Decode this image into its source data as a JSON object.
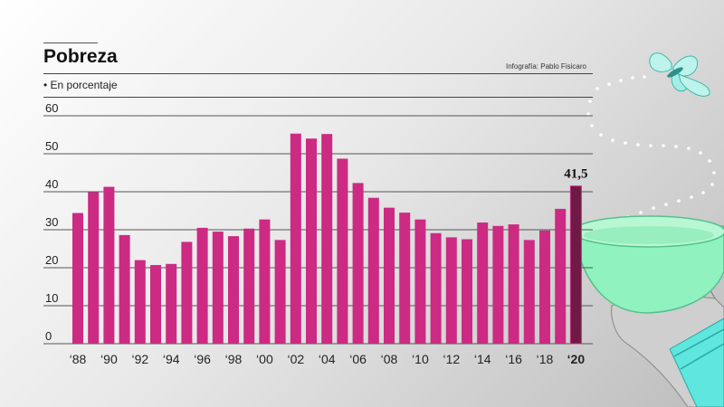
{
  "header": {
    "title": "Pobreza",
    "subtitle": "• En porcentaje",
    "credit": "Infografía: Pablo Fisicaro"
  },
  "colors": {
    "bar": "#cc2a83",
    "bar_highlight": "#6e1a44",
    "accent_bowl": "#7ef0b3",
    "accent_sleeve": "#5fe6de"
  },
  "decoration": {
    "icons": [
      "butterfly-icon",
      "bowl-icon",
      "hand-icon"
    ]
  },
  "chart_data": {
    "type": "bar",
    "title": "Pobreza",
    "ylabel": "En porcentaje",
    "ylim": [
      0,
      60
    ],
    "yticks": [
      0,
      10,
      20,
      30,
      40,
      50,
      60
    ],
    "grid": false,
    "categories": [
      "1988",
      "1989",
      "1990",
      "1991",
      "1992",
      "1993",
      "1994",
      "1995",
      "1996",
      "1997",
      "1998",
      "1999",
      "2000",
      "2001",
      "2002",
      "2003",
      "2004",
      "2005",
      "2006",
      "2007",
      "2008",
      "2009",
      "2010",
      "2011",
      "2012",
      "2013",
      "2014",
      "2015",
      "2016",
      "2017",
      "2018",
      "2019",
      "2020"
    ],
    "values": [
      34.4,
      39.9,
      41.3,
      28.6,
      22.0,
      20.7,
      21.0,
      26.8,
      30.5,
      29.5,
      28.3,
      30.3,
      32.7,
      27.3,
      55.3,
      54.0,
      55.2,
      48.7,
      42.3,
      38.4,
      35.8,
      34.5,
      32.7,
      29.1,
      28.0,
      27.5,
      31.9,
      31.0,
      31.4,
      27.3,
      29.8,
      35.5,
      41.5
    ],
    "xtick_labels": [
      "‘88",
      "‘90",
      "‘92",
      "‘94",
      "‘96",
      "‘98",
      "‘00",
      "‘02",
      "‘04",
      "‘06",
      "‘08",
      "‘10",
      "‘12",
      "‘14",
      "‘16",
      "‘18",
      "‘20"
    ],
    "highlight": {
      "category": "2020",
      "label": "41,5"
    }
  }
}
